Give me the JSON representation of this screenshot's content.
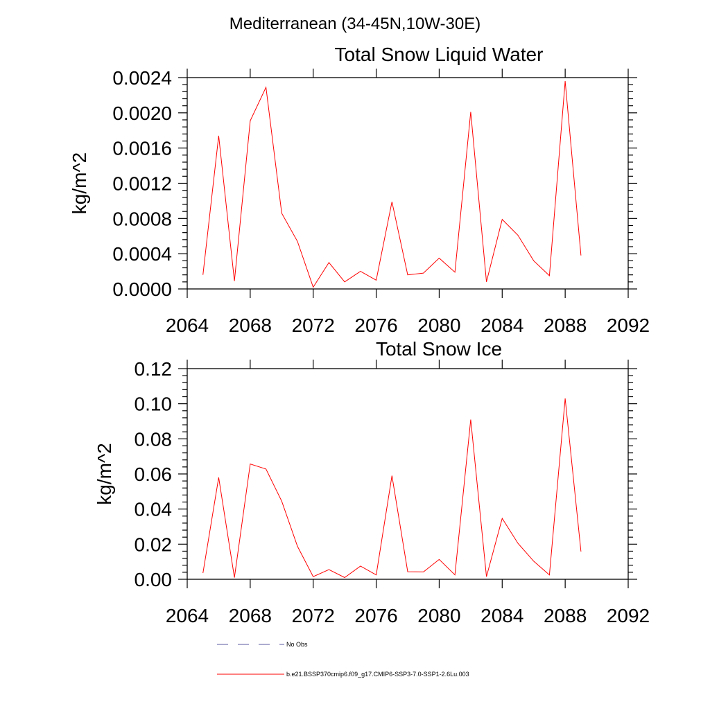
{
  "page_title": "Mediterranean (34-45N,10W-30E)",
  "chart_data": [
    {
      "type": "line",
      "title": "Total Snow Liquid Water",
      "xlabel": "",
      "ylabel": "kg/m^2",
      "xlim": [
        2064,
        2092
      ],
      "ylim": [
        0,
        0.0024
      ],
      "x_ticks": [
        2064,
        2068,
        2072,
        2076,
        2080,
        2084,
        2088,
        2092
      ],
      "x_tick_labels": [
        "2064",
        "2068",
        "2072",
        "2076",
        "2080",
        "2084",
        "2088",
        "2092"
      ],
      "y_ticks": [
        0,
        0.0004,
        0.0008,
        0.0012,
        0.0016,
        0.002,
        0.0024
      ],
      "y_tick_labels": [
        "0.0000",
        "0.0004",
        "0.0008",
        "0.0012",
        "0.0016",
        "0.0020",
        "0.0024"
      ],
      "grid": false,
      "series": [
        {
          "name": "b.e21.BSSP370cmip6.f09_g17.CMIP6-SSP3-7.0-SSP1-2.6Lu.003",
          "color": "#ff0000",
          "x": [
            2065,
            2066,
            2067,
            2068,
            2069,
            2070,
            2071,
            2072,
            2073,
            2074,
            2075,
            2076,
            2077,
            2078,
            2079,
            2080,
            2081,
            2082,
            2083,
            2084,
            2085,
            2086,
            2087,
            2088,
            2089
          ],
          "values": [
            0.00016,
            0.00174,
            9e-05,
            0.00191,
            0.00229,
            0.00086,
            0.00054,
            2e-05,
            0.0003,
            8e-05,
            0.0002,
            0.0001,
            0.00099,
            0.00016,
            0.00018,
            0.00035,
            0.00019,
            0.00201,
            8e-05,
            0.00079,
            0.00061,
            0.00032,
            0.00015,
            0.00236,
            0.00038
          ]
        }
      ]
    },
    {
      "type": "line",
      "title": "Total Snow Ice",
      "xlabel": "",
      "ylabel": "kg/m^2",
      "xlim": [
        2064,
        2092
      ],
      "ylim": [
        0,
        0.12
      ],
      "x_ticks": [
        2064,
        2068,
        2072,
        2076,
        2080,
        2084,
        2088,
        2092
      ],
      "x_tick_labels": [
        "2064",
        "2068",
        "2072",
        "2076",
        "2080",
        "2084",
        "2088",
        "2092"
      ],
      "y_ticks": [
        0,
        0.02,
        0.04,
        0.06,
        0.08,
        0.1,
        0.12
      ],
      "y_tick_labels": [
        "0.00",
        "0.02",
        "0.04",
        "0.06",
        "0.08",
        "0.10",
        "0.12"
      ],
      "grid": false,
      "series": [
        {
          "name": "b.e21.BSSP370cmip6.f09_g17.CMIP6-SSP3-7.0-SSP1-2.6Lu.003",
          "color": "#ff0000",
          "x": [
            2065,
            2066,
            2067,
            2068,
            2069,
            2070,
            2071,
            2072,
            2073,
            2074,
            2075,
            2076,
            2077,
            2078,
            2079,
            2080,
            2081,
            2082,
            2083,
            2084,
            2085,
            2086,
            2087,
            2088,
            2089
          ],
          "values": [
            0.0035,
            0.058,
            0.001,
            0.0657,
            0.0628,
            0.0445,
            0.0188,
            0.0015,
            0.0055,
            0.001,
            0.0075,
            0.0025,
            0.059,
            0.0043,
            0.0042,
            0.0113,
            0.0025,
            0.091,
            0.0015,
            0.0347,
            0.0205,
            0.0103,
            0.0025,
            0.103,
            0.0158
          ]
        }
      ]
    }
  ],
  "legend": {
    "placement": "bottom-left",
    "items": [
      {
        "label": "No Obs",
        "style": "dashed",
        "color": "#5a5aa0"
      },
      {
        "label": "b.e21.BSSP370cmip6.f09_g17.CMIP6-SSP3-7.0-SSP1-2.6Lu.003",
        "style": "solid",
        "color": "#ff0000"
      }
    ]
  }
}
